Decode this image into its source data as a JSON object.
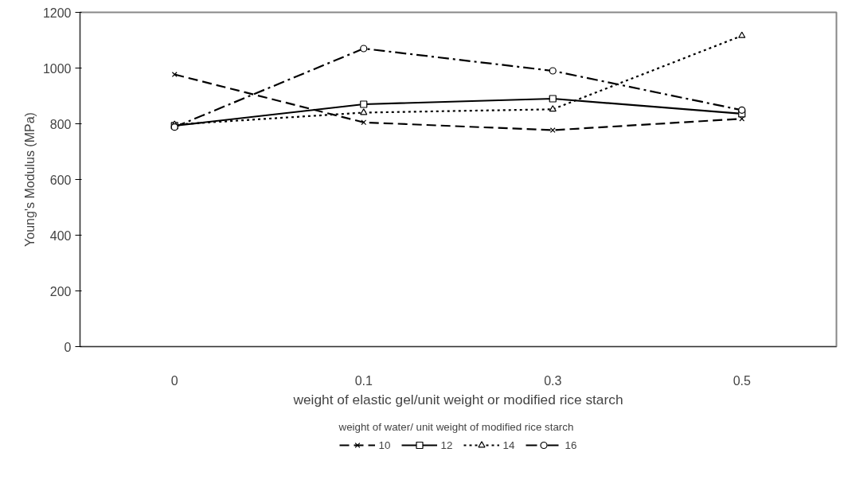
{
  "chart_data": {
    "type": "line",
    "xlabel": "weight of elastic gel/unit weight or modified rice starch",
    "ylabel": "Young's Modulus (MPa)",
    "legend_title": "weight of water/ unit weight of modified rice starch",
    "legend": "bottom",
    "categories": [
      "0",
      "0.1",
      "0.3",
      "0.5"
    ],
    "ylim": [
      0,
      1200
    ],
    "yticks": [
      0,
      200,
      400,
      600,
      800,
      1000,
      1200
    ],
    "grid": false,
    "series": [
      {
        "name": "10",
        "color": "#000000",
        "marker": "cross",
        "line_style": "dashed",
        "values": [
          977,
          805,
          777,
          818
        ]
      },
      {
        "name": "12",
        "color": "#000000",
        "marker": "square",
        "line_style": "solid",
        "values": [
          793,
          870,
          890,
          836
        ]
      },
      {
        "name": "14",
        "color": "#000000",
        "marker": "triangle",
        "line_style": "dotted",
        "values": [
          797,
          840,
          852,
          1116
        ]
      },
      {
        "name": "16",
        "color": "#000000",
        "marker": "circle",
        "line_style": "dashdot",
        "values": [
          788,
          1070,
          990,
          849
        ]
      }
    ]
  }
}
